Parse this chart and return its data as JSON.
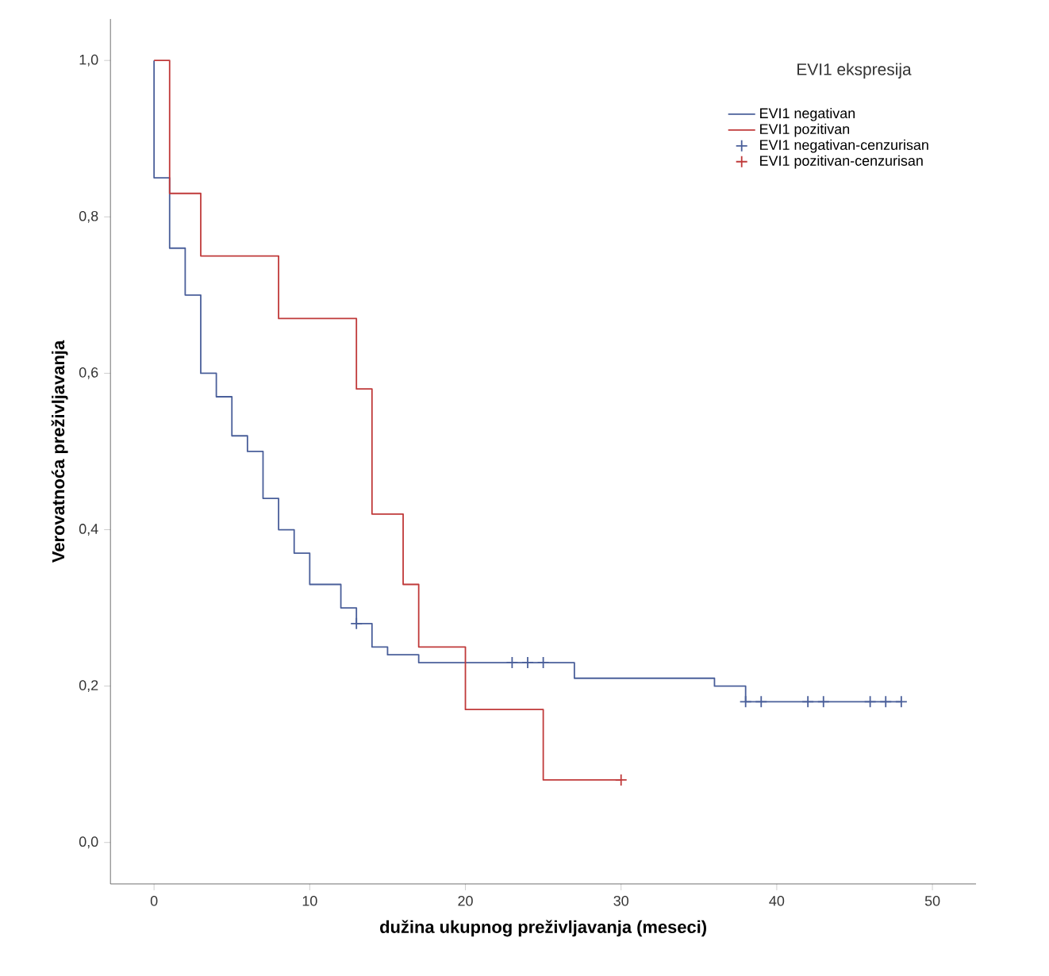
{
  "chart_data": {
    "type": "step",
    "xlabel": "dužina ukupnog preživljavanja  (meseci)",
    "ylabel": "Verovatnoća preživljavanja",
    "legend_title": "EVI1 ekspresija",
    "legend": "top right",
    "grid": false,
    "xlim": [
      -2.8,
      52.8
    ],
    "ylim": [
      -0.053,
      1.053
    ],
    "xticks": [
      0,
      10,
      20,
      30,
      40,
      50
    ],
    "yticks": [
      {
        "value": 0,
        "label": "0,0"
      },
      {
        "value": 0.2,
        "label": "0,2"
      },
      {
        "value": 0.4,
        "label": "0,4"
      },
      {
        "value": 0.6,
        "label": "0,6"
      },
      {
        "value": 0.8,
        "label": "0,8"
      },
      {
        "value": 1,
        "label": "1,0"
      }
    ],
    "series": [
      {
        "name": "EVI1 negativan",
        "marker": "none",
        "color": "#4a5f9a",
        "x": [
          0,
          0,
          1,
          2,
          3,
          4,
          5,
          6,
          7,
          8,
          9,
          10,
          12,
          13,
          14,
          15,
          17,
          27,
          36,
          38,
          48
        ],
        "values": [
          1,
          0.85,
          0.76,
          0.7,
          0.6,
          0.57,
          0.52,
          0.5,
          0.44,
          0.4,
          0.37,
          0.33,
          0.3,
          0.28,
          0.25,
          0.24,
          0.23,
          0.21,
          0.2,
          0.18,
          0.18
        ]
      },
      {
        "name": "EVI1 pozitivan",
        "marker": "none",
        "color": "#c03a3a",
        "x": [
          0,
          1,
          3,
          8,
          13,
          14,
          16,
          17,
          20,
          25,
          30
        ],
        "values": [
          1,
          0.83,
          0.75,
          0.67,
          0.58,
          0.42,
          0.33,
          0.25,
          0.17,
          0.08,
          0.08
        ]
      },
      {
        "name": "EVI1 negativan-cenzurisan",
        "type": "scatter",
        "marker": "cross",
        "color": "#4a5f9a",
        "x": [
          13,
          23,
          24,
          25,
          38,
          39,
          42,
          43,
          46,
          47,
          48
        ],
        "values": [
          0.28,
          0.23,
          0.23,
          0.23,
          0.18,
          0.18,
          0.18,
          0.18,
          0.18,
          0.18,
          0.18
        ]
      },
      {
        "name": "EVI1 pozitivan-cenzurisan",
        "type": "scatter",
        "marker": "cross",
        "color": "#c03a3a",
        "x": [
          30
        ],
        "values": [
          0.08
        ]
      }
    ]
  }
}
